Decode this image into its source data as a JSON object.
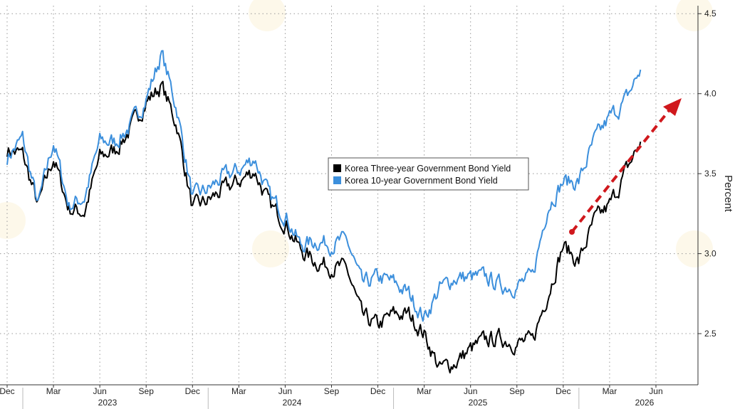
{
  "chart_data": {
    "type": "line",
    "ylabel": "Percent",
    "ylim": [
      2.18,
      4.55
    ],
    "y_ticks": [
      "2.5",
      "3.0",
      "3.5",
      "4.0",
      "4.5"
    ],
    "x_month_ticks": [
      "Dec",
      "Mar",
      "Jun",
      "Sep",
      "Dec",
      "Mar",
      "Jun",
      "Sep",
      "Dec",
      "Mar",
      "Jun",
      "Sep",
      "Dec",
      "Mar",
      "Jun"
    ],
    "x_year_labels": [
      "2023",
      "2024",
      "2025",
      "2026"
    ],
    "grid": true,
    "legend_position": "center",
    "legend": [
      "Korea Three-year Government Bond Yield",
      "Korea 10-year Government Bond Yield"
    ],
    "x": [
      "2022-12",
      "2023-01",
      "2023-02",
      "2023-03",
      "2023-04",
      "2023-05",
      "2023-06",
      "2023-07",
      "2023-08",
      "2023-09",
      "2023-10",
      "2023-11",
      "2023-12",
      "2024-01",
      "2024-02",
      "2024-03",
      "2024-04",
      "2024-05",
      "2024-06",
      "2024-07",
      "2024-08",
      "2024-09",
      "2024-10",
      "2024-11",
      "2024-12",
      "2025-01",
      "2025-02",
      "2025-03",
      "2025-04",
      "2025-05",
      "2025-06",
      "2025-07",
      "2025-08",
      "2025-09",
      "2025-10",
      "2025-11",
      "2025-12",
      "2026-01",
      "2026-02",
      "2026-03",
      "2026-04",
      "2026-05"
    ],
    "series": [
      {
        "name": "Korea Three-year Government Bond Yield",
        "color": "#000000",
        "values": [
          3.65,
          3.62,
          3.3,
          3.6,
          3.28,
          3.26,
          3.6,
          3.65,
          3.78,
          3.95,
          4.05,
          3.8,
          3.28,
          3.33,
          3.4,
          3.45,
          3.52,
          3.3,
          3.2,
          3.02,
          2.95,
          2.92,
          2.9,
          2.6,
          2.55,
          2.62,
          2.62,
          2.5,
          2.28,
          2.32,
          2.4,
          2.46,
          2.47,
          2.44,
          2.45,
          2.75,
          3.05,
          2.95,
          3.2,
          3.3,
          3.5,
          3.7
        ]
      },
      {
        "name": "Korea 10-year Government Bond Yield",
        "color": "#3c8fdc",
        "values": [
          3.6,
          3.72,
          3.3,
          3.7,
          3.3,
          3.35,
          3.7,
          3.7,
          3.8,
          3.97,
          4.25,
          3.9,
          3.35,
          3.4,
          3.48,
          3.52,
          3.6,
          3.35,
          3.25,
          3.05,
          3.08,
          3.06,
          3.08,
          2.8,
          2.85,
          2.82,
          2.75,
          2.6,
          2.78,
          2.85,
          2.85,
          2.85,
          2.8,
          2.8,
          2.85,
          3.3,
          3.45,
          3.45,
          3.7,
          3.85,
          3.95,
          4.15
        ]
      }
    ],
    "annotation": "red dashed arrow pointing up-right",
    "annotation_color": "#d0181d"
  }
}
